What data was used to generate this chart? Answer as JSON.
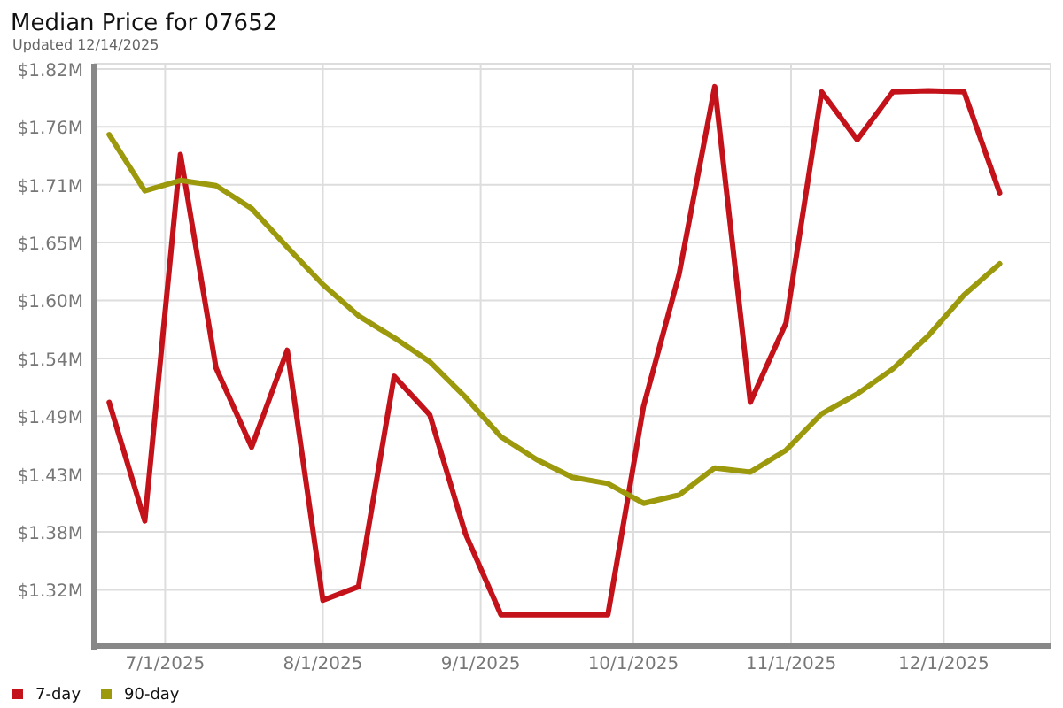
{
  "chart_data": {
    "type": "line",
    "title": "Median Price for 07652",
    "subtitle": "Updated 12/14/2025",
    "x": [
      "2025-06-20",
      "2025-06-27",
      "2025-07-04",
      "2025-07-11",
      "2025-07-18",
      "2025-07-25",
      "2025-08-01",
      "2025-08-08",
      "2025-08-15",
      "2025-08-22",
      "2025-08-29",
      "2025-09-05",
      "2025-09-12",
      "2025-09-19",
      "2025-09-26",
      "2025-10-03",
      "2025-10-10",
      "2025-10-17",
      "2025-10-24",
      "2025-10-31",
      "2025-11-07",
      "2025-11-14",
      "2025-11-21",
      "2025-11-28",
      "2025-12-05",
      "2025-12-12"
    ],
    "series": [
      {
        "name": "7-day",
        "color": "#c4121a",
        "values": [
          1.5,
          1.386,
          1.738,
          1.533,
          1.457,
          1.55,
          1.31,
          1.323,
          1.525,
          1.488,
          1.374,
          1.296,
          1.296,
          1.296,
          1.296,
          1.496,
          1.623,
          1.803,
          1.5,
          1.576,
          1.798,
          1.752,
          1.798,
          1.799,
          1.798,
          1.701
        ]
      },
      {
        "name": "90-day",
        "color": "#9c9a0c",
        "values": [
          1.757,
          1.703,
          1.713,
          1.708,
          1.686,
          1.649,
          1.613,
          1.583,
          1.562,
          1.539,
          1.505,
          1.467,
          1.445,
          1.428,
          1.422,
          1.403,
          1.411,
          1.437,
          1.433,
          1.454,
          1.489,
          1.508,
          1.532,
          1.564,
          1.603,
          1.633
        ]
      }
    ],
    "xlim": [
      "2025-06-17",
      "2025-12-22"
    ],
    "xticks": [
      {
        "value": "2025-07-01",
        "label": "7/1/2025"
      },
      {
        "value": "2025-08-01",
        "label": "8/1/2025"
      },
      {
        "value": "2025-09-01",
        "label": "9/1/2025"
      },
      {
        "value": "2025-10-01",
        "label": "10/1/2025"
      },
      {
        "value": "2025-11-01",
        "label": "11/1/2025"
      },
      {
        "value": "2025-12-01",
        "label": "12/1/2025"
      }
    ],
    "ylim": [
      1.266,
      1.825
    ],
    "yticks": [
      {
        "value": 1.32,
        "label": "$1.32M"
      },
      {
        "value": 1.3756,
        "label": "$1.38M"
      },
      {
        "value": 1.4311,
        "label": "$1.43M"
      },
      {
        "value": 1.4867,
        "label": "$1.49M"
      },
      {
        "value": 1.5422,
        "label": "$1.54M"
      },
      {
        "value": 1.5978,
        "label": "$1.60M"
      },
      {
        "value": 1.6533,
        "label": "$1.65M"
      },
      {
        "value": 1.7089,
        "label": "$1.71M"
      },
      {
        "value": 1.7644,
        "label": "$1.76M"
      },
      {
        "value": 1.82,
        "label": "$1.82M"
      }
    ],
    "grid": true,
    "legend": "bottom left",
    "marker": "none",
    "line_style": "solid"
  }
}
